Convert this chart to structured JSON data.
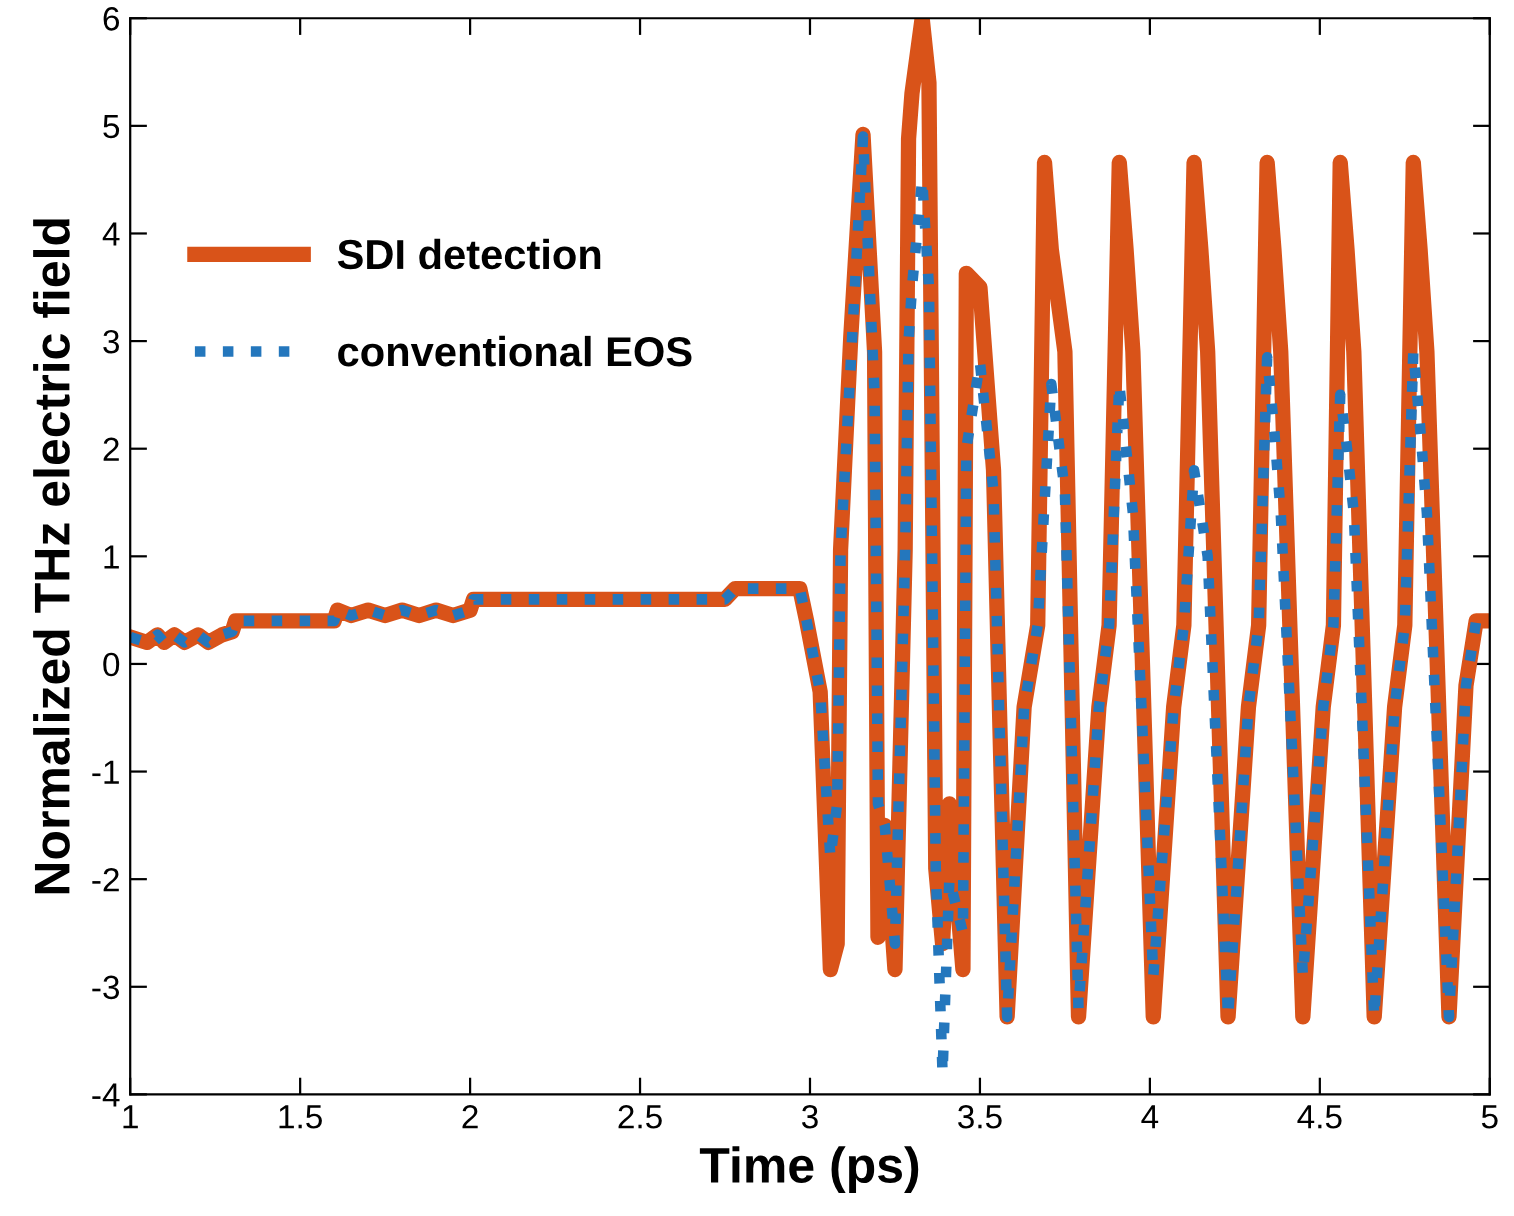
{
  "chart_data": {
    "type": "line",
    "xlabel": "Time (ps)",
    "ylabel": "Normalized THz electric field",
    "x": [
      1.0,
      1.05,
      1.08,
      1.1,
      1.13,
      1.16,
      1.2,
      1.23,
      1.27,
      1.3,
      1.31,
      1.6,
      1.61,
      1.65,
      1.7,
      1.75,
      1.8,
      1.85,
      1.9,
      1.95,
      2.0,
      2.01,
      2.75,
      2.78,
      2.97,
      2.99,
      3.03,
      3.06,
      3.08,
      3.09,
      3.12,
      3.156,
      3.19,
      3.2,
      3.22,
      3.25,
      3.28,
      3.29,
      3.3,
      3.33,
      3.35,
      3.37,
      3.39,
      3.41,
      3.45,
      3.46,
      3.5,
      3.54,
      3.58,
      3.63,
      3.67,
      3.69,
      3.71,
      3.75,
      3.79,
      3.85,
      3.88,
      3.91,
      3.93,
      3.95,
      4.01,
      4.07,
      4.1,
      4.13,
      4.15,
      4.17,
      4.23,
      4.29,
      4.32,
      4.345,
      4.365,
      4.385,
      4.45,
      4.51,
      4.54,
      4.56,
      4.58,
      4.6,
      4.66,
      4.72,
      4.75,
      4.775,
      4.795,
      4.815,
      4.88,
      4.93,
      4.96,
      5.0
    ],
    "series": [
      {
        "name": "SDI detection",
        "color": "#d95319",
        "line_style": "solid",
        "values": [
          0.25,
          0.2,
          0.27,
          0.2,
          0.27,
          0.2,
          0.27,
          0.2,
          0.27,
          0.3,
          0.4,
          0.4,
          0.5,
          0.45,
          0.5,
          0.45,
          0.5,
          0.45,
          0.5,
          0.45,
          0.5,
          0.6,
          0.6,
          0.7,
          0.7,
          0.4,
          -0.26,
          -2.84,
          -2.6,
          1.06,
          3.04,
          4.92,
          2.9,
          -2.54,
          -1.5,
          -2.84,
          1.06,
          4.88,
          5.3,
          6.0,
          5.4,
          -1.9,
          -2.6,
          -1.3,
          -2.84,
          3.63,
          3.5,
          1.8,
          -3.28,
          -0.4,
          0.36,
          4.66,
          3.85,
          2.9,
          -3.28,
          -0.4,
          0.36,
          4.66,
          3.85,
          2.9,
          -3.28,
          -0.4,
          0.36,
          4.66,
          3.85,
          2.9,
          -3.28,
          -0.4,
          0.36,
          4.66,
          3.85,
          2.9,
          -3.28,
          -0.4,
          0.36,
          4.66,
          3.85,
          2.9,
          -3.28,
          -0.4,
          0.36,
          4.66,
          3.85,
          2.9,
          -3.28,
          -0.2,
          0.4,
          0.4
        ]
      },
      {
        "name": "conventional EOS",
        "color": "#2477bd",
        "line_style": "dotted",
        "values": [
          0.25,
          0.2,
          0.27,
          0.2,
          0.27,
          0.2,
          0.27,
          0.2,
          0.27,
          0.3,
          0.4,
          0.4,
          0.5,
          0.45,
          0.5,
          0.45,
          0.5,
          0.45,
          0.5,
          0.45,
          0.5,
          0.6,
          0.6,
          0.7,
          0.7,
          0.4,
          -0.26,
          -1.8,
          -1.3,
          1.06,
          2.8,
          4.9,
          2.5,
          -1.3,
          -1.5,
          -2.6,
          1.06,
          3.0,
          3.5,
          4.5,
          3.5,
          -1.9,
          -3.8,
          -2.0,
          -2.5,
          2.0,
          2.8,
          1.6,
          -3.28,
          -0.4,
          0.36,
          1.5,
          2.6,
          1.6,
          -3.2,
          -0.4,
          0.36,
          2.6,
          2.0,
          1.4,
          -2.9,
          -0.4,
          0.36,
          1.8,
          1.4,
          1.0,
          -3.28,
          -0.4,
          0.36,
          2.85,
          2.2,
          1.4,
          -2.9,
          -0.4,
          0.36,
          2.5,
          2.0,
          1.4,
          -3.28,
          -0.4,
          0.36,
          2.9,
          2.2,
          1.4,
          -3.28,
          -0.2,
          0.4,
          0.4
        ]
      }
    ],
    "xlim": [
      1,
      5
    ],
    "ylim": [
      -4,
      6
    ],
    "xticks": [
      1,
      1.5,
      2,
      2.5,
      3,
      3.5,
      4,
      4.5,
      5
    ],
    "yticks": [
      -4,
      -3,
      -2,
      -1,
      0,
      1,
      2,
      3,
      4,
      5,
      6
    ],
    "grid": false,
    "legend": "top left",
    "marker": "none"
  }
}
